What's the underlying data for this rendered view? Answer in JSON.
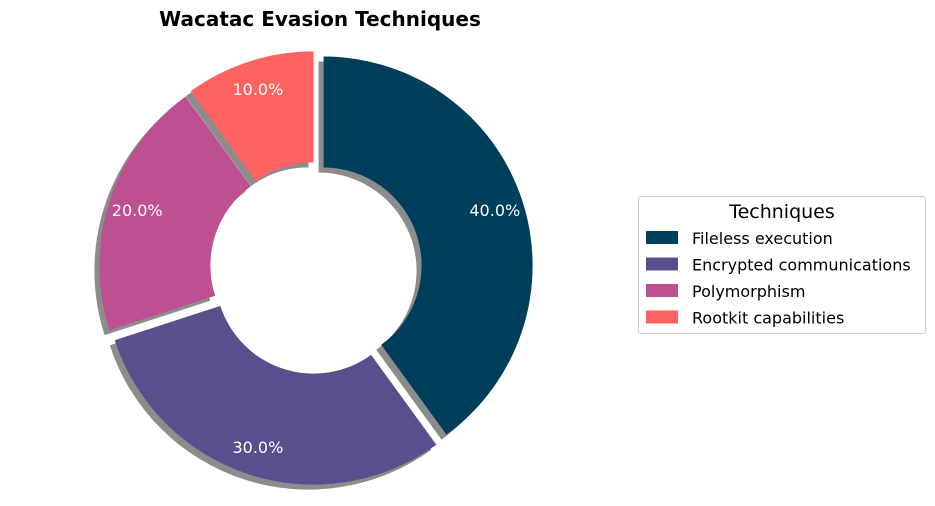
{
  "chart_data": {
    "type": "pie",
    "variant": "donut",
    "title": "Wacatac Evasion Techniques",
    "categories": [
      "Fileless execution",
      "Encrypted communications",
      "Polymorphism",
      "Rootkit capabilities"
    ],
    "values": [
      40,
      30,
      20,
      10
    ],
    "value_labels": [
      "40.0%",
      "30.0%",
      "20.0%",
      "10.0%"
    ],
    "colors": [
      "#003f5c",
      "#58508d",
      "#bc5090",
      "#ff6361"
    ],
    "shadow": true,
    "exploded": true,
    "legend": {
      "title": "Techniques",
      "placement": "right"
    }
  }
}
